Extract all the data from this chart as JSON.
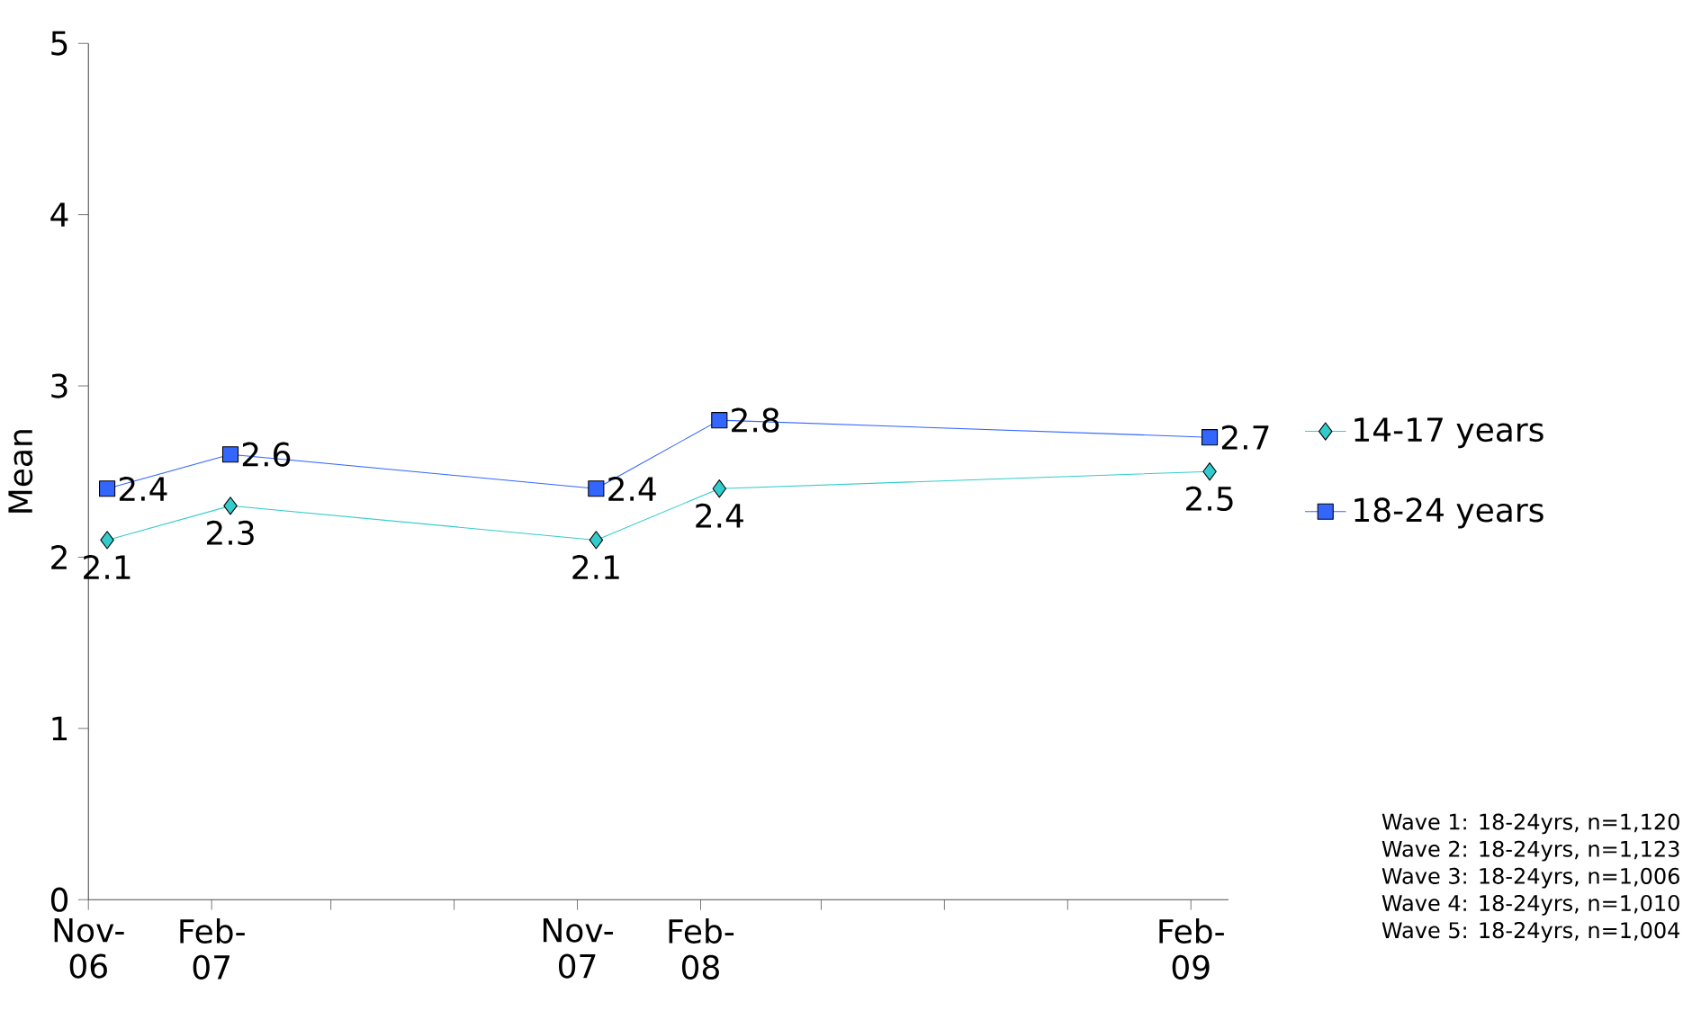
{
  "chart_data": {
    "type": "line",
    "ylabel": "Mean",
    "x": [
      "2006-11-15",
      "2007-02-15",
      "2007-11-15",
      "2008-02-15",
      "2009-02-15"
    ],
    "series": [
      {
        "name": "14-17 years",
        "color": "#33cccc",
        "marker": "diamond",
        "values": [
          2.1,
          2.3,
          2.1,
          2.4,
          2.5
        ]
      },
      {
        "name": "18-24 years",
        "color": "#3366ff",
        "marker": "square",
        "values": [
          2.4,
          2.6,
          2.4,
          2.8,
          2.7
        ]
      }
    ],
    "xlim": [
      "2006-11-01",
      "2009-03-01"
    ],
    "xticks": [
      {
        "value": "2006-11-01",
        "label": "Nov-06"
      },
      {
        "value": "2007-02-01",
        "label": "Feb-07"
      },
      {
        "value": "2007-05-01",
        "label": null
      },
      {
        "value": "2007-08-01",
        "label": null
      },
      {
        "value": "2007-11-01",
        "label": "Nov-07"
      },
      {
        "value": "2008-02-01",
        "label": "Feb-08"
      },
      {
        "value": "2008-05-01",
        "label": null
      },
      {
        "value": "2008-08-01",
        "label": null
      },
      {
        "value": "2008-11-01",
        "label": null
      },
      {
        "value": "2009-02-01",
        "label": "Feb-09"
      }
    ],
    "ylim": [
      0,
      5
    ],
    "yticks": [
      0,
      1,
      2,
      3,
      4,
      5
    ],
    "grid": false,
    "legend": "right",
    "data_labels": true,
    "line_style": "solid",
    "annotations": [
      "Wave 1: 18-24yrs, n=1,120",
      "Wave 2: 18-24yrs, n=1,123",
      "Wave 3: 18-24yrs, n=1,006",
      "Wave 4: 18-24yrs, n=1,010",
      "Wave 5: 18-24yrs, n=1,004"
    ]
  }
}
